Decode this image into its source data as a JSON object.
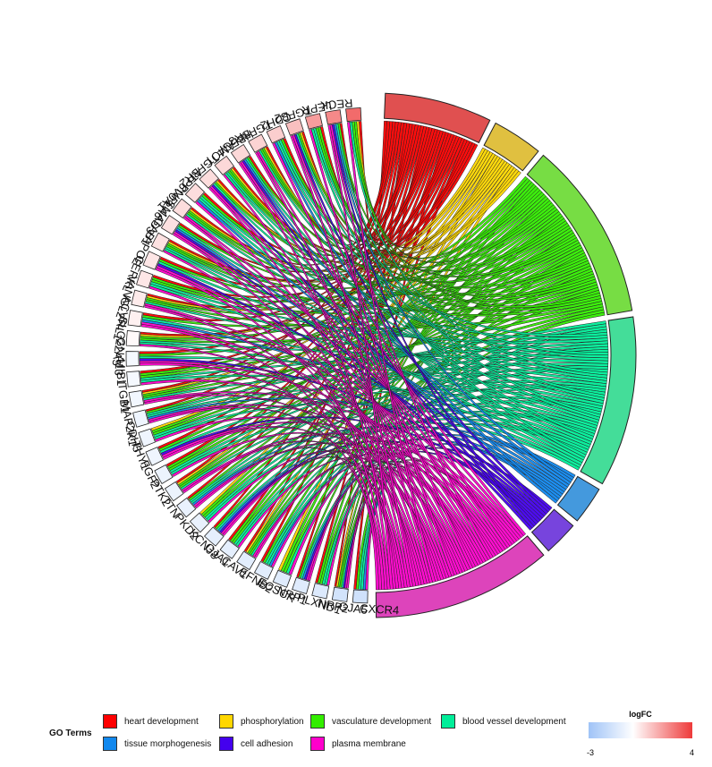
{
  "chart_data": {
    "type": "chord",
    "title": "",
    "genes": [
      {
        "name": "RECK",
        "logFC": 3.0
      },
      {
        "name": "LEPR",
        "logFC": 2.4
      },
      {
        "name": "TGFB2",
        "logFC": 2.0
      },
      {
        "name": "CDH2",
        "logFC": 1.3
      },
      {
        "name": "TGFBR3",
        "logFC": 1.0
      },
      {
        "name": "HBEGF",
        "logFC": 0.9
      },
      {
        "name": "AMOT",
        "logFC": 0.8
      },
      {
        "name": "TGFBR2",
        "logFC": 0.8
      },
      {
        "name": "ATP6V0A1",
        "logFC": 0.7
      },
      {
        "name": "PNPLA6",
        "logFC": 0.7
      },
      {
        "name": "SMAD3",
        "logFC": 0.7
      },
      {
        "name": "GAB1",
        "logFC": 0.6
      },
      {
        "name": "APOE",
        "logFC": 0.6
      },
      {
        "name": "CERKL",
        "logFC": 0.5
      },
      {
        "name": "VANGL2",
        "logFC": 0.5
      },
      {
        "name": "ACVRL1",
        "logFC": 0.4
      },
      {
        "name": "SLC22A5",
        "logFC": 0.3
      },
      {
        "name": "GNA13",
        "logFC": 0.1
      },
      {
        "name": "MIB1",
        "logFC": -0.3
      },
      {
        "name": "ITGB1",
        "logFC": -0.3
      },
      {
        "name": "MAP2K1",
        "logFC": -0.4
      },
      {
        "name": "CDH5",
        "logFC": -0.5
      },
      {
        "name": "THY1",
        "logFC": -0.5
      },
      {
        "name": "FGF2",
        "logFC": -0.5
      },
      {
        "name": "PTK2",
        "logFC": -0.6
      },
      {
        "name": "TTN",
        "logFC": -0.6
      },
      {
        "name": "PKD2",
        "logFC": -0.7
      },
      {
        "name": "KCNJ8",
        "logFC": -0.7
      },
      {
        "name": "GJA1",
        "logFC": -0.8
      },
      {
        "name": "CAV1",
        "logFC": -0.8
      },
      {
        "name": "EFNB2",
        "logFC": -0.9
      },
      {
        "name": "ECSCR",
        "logFC": -0.9
      },
      {
        "name": "NRP1",
        "logFC": -1.0
      },
      {
        "name": "PLXND1",
        "logFC": -1.0
      },
      {
        "name": "NRP2",
        "logFC": -1.1
      },
      {
        "name": "GJA5",
        "logFC": -1.4
      },
      {
        "name": "CXCR4",
        "logFC": -1.5
      }
    ],
    "terms": [
      {
        "name": "heart development",
        "color": "#ff0000",
        "arc_color": "#e05050",
        "weight": 34
      },
      {
        "name": "phosphorylation",
        "color": "#ffd700",
        "arc_color": "#e0c040",
        "weight": 16
      },
      {
        "name": "vasculature development",
        "color": "#33ee00",
        "arc_color": "#77dd44",
        "weight": 57
      },
      {
        "name": "blood vessel development",
        "color": "#00ee99",
        "arc_color": "#44dd99",
        "weight": 54
      },
      {
        "name": "tissue morphogenesis",
        "color": "#1188ee",
        "arc_color": "#4499dd",
        "weight": 12
      },
      {
        "name": "cell adhesion",
        "color": "#4400ee",
        "arc_color": "#7744dd",
        "weight": 11
      },
      {
        "name": "plasma membrane",
        "color": "#ff00cc",
        "arc_color": "#dd44bb",
        "weight": 57
      }
    ],
    "legend": {
      "title": "GO Terms",
      "placement": "bottom"
    },
    "colorbar": {
      "title": "logFC",
      "min_label": "-3",
      "max_label": "4",
      "min": -3,
      "max": 4,
      "low_color": "#9fc3f7",
      "mid_color": "#ffffff",
      "high_color": "#ee3a3a"
    },
    "outline_color": "#222222"
  }
}
